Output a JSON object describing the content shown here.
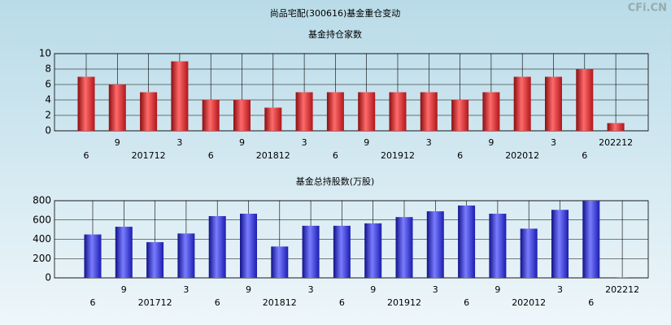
{
  "header": {
    "title": "尚品宅配(300616)基金重仓变动",
    "watermark": "CFi.CN"
  },
  "chart_data": [
    {
      "type": "bar",
      "title": "基金持仓家数",
      "categories": [
        "6",
        "9",
        "201712",
        "3",
        "6",
        "9",
        "201812",
        "3",
        "6",
        "9",
        "201912",
        "3",
        "6",
        "9",
        "202012",
        "3",
        "6",
        "202212"
      ],
      "values": [
        7,
        6,
        5,
        9,
        4,
        4,
        3,
        5,
        5,
        5,
        5,
        5,
        4,
        5,
        7,
        7,
        8,
        1
      ],
      "color": "#e0262b",
      "ylim": [
        0,
        10
      ],
      "yticks": [
        0,
        2,
        4,
        6,
        8,
        10
      ],
      "grid": true
    },
    {
      "type": "bar",
      "title": "基金总持股数(万股)",
      "categories": [
        "6",
        "9",
        "201712",
        "3",
        "6",
        "9",
        "201812",
        "3",
        "6",
        "9",
        "201912",
        "3",
        "6",
        "9",
        "202012",
        "3",
        "6",
        "202212"
      ],
      "values": [
        450,
        530,
        370,
        460,
        640,
        665,
        325,
        540,
        540,
        565,
        630,
        690,
        750,
        665,
        510,
        705,
        800,
        5
      ],
      "color": "#2b2fe0",
      "ylim": [
        0,
        800
      ],
      "yticks": [
        0,
        200,
        400,
        600,
        800
      ],
      "grid": true
    }
  ]
}
